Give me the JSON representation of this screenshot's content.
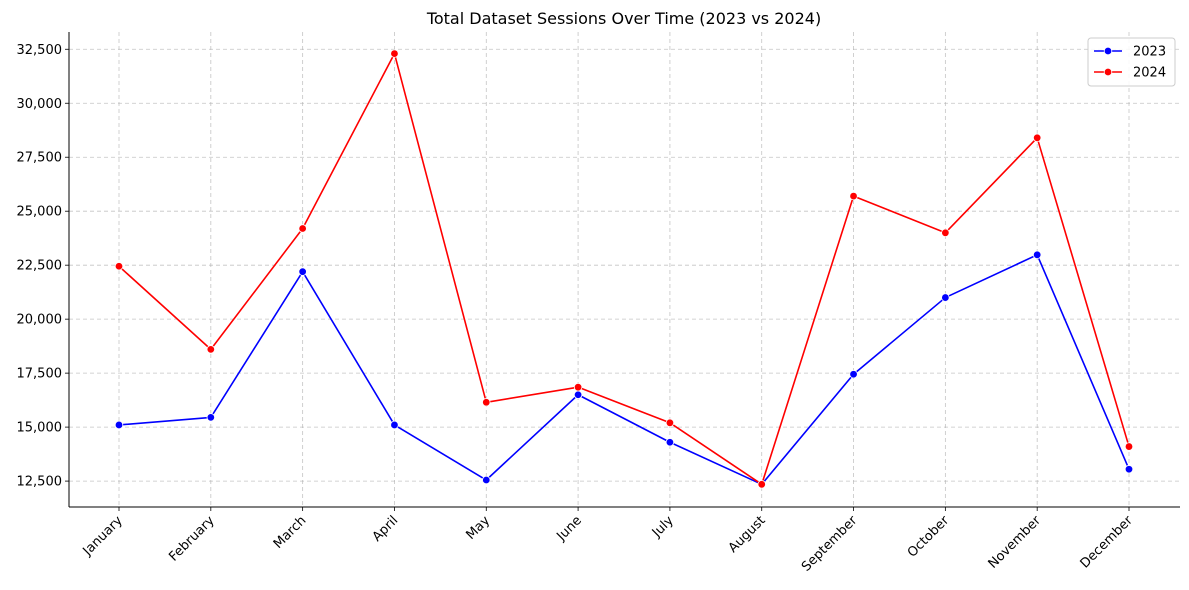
{
  "chart_data": {
    "type": "line",
    "title": "Total Dataset Sessions Over Time (2023 vs 2024)",
    "xlabel": "",
    "ylabel": "",
    "categories": [
      "January",
      "February",
      "March",
      "April",
      "May",
      "June",
      "July",
      "August",
      "September",
      "October",
      "November",
      "December"
    ],
    "yticks": [
      12500,
      15000,
      17500,
      20000,
      22500,
      25000,
      27500,
      30000,
      32500
    ],
    "ytick_labels": [
      "12,500",
      "15,000",
      "17,500",
      "20,000",
      "22,500",
      "25,000",
      "27,500",
      "30,000",
      "32,500"
    ],
    "ylim": [
      11300,
      33300
    ],
    "grid": true,
    "legend_position": "top-right",
    "series": [
      {
        "name": "2023",
        "color": "#0000ff",
        "marker": "circle",
        "values": [
          15100,
          15450,
          22200,
          15100,
          12550,
          16500,
          14300,
          12350,
          17450,
          21000,
          22980,
          13050
        ]
      },
      {
        "name": "2024",
        "color": "#ff0000",
        "marker": "circle",
        "values": [
          22450,
          18600,
          24200,
          32300,
          16150,
          16850,
          15200,
          12350,
          25700,
          24000,
          28400,
          14100
        ]
      }
    ]
  }
}
